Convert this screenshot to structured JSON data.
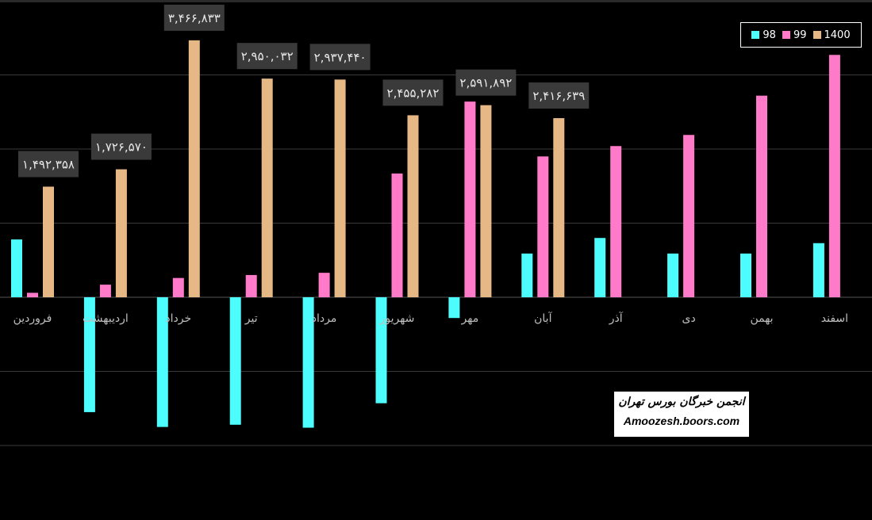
{
  "chart_data": {
    "type": "bar",
    "title": "",
    "xlabel": "",
    "ylabel": "",
    "ylim": [
      -2000000,
      4000000
    ],
    "grid": true,
    "legend_position": "top-right",
    "categories": [
      "فروردین",
      "اردیبهشت",
      "خرداد",
      "تیر",
      "مرداد",
      "شهریور",
      "مهر",
      "آبان",
      "آذر",
      "دی",
      "بهمن",
      "اسفند"
    ],
    "series": [
      {
        "name": "98",
        "color": "#4dfcfc",
        "values": [
          780000,
          -1550000,
          -1750000,
          -1720000,
          -1760000,
          -1430000,
          -280000,
          590000,
          800000,
          590000,
          590000,
          730000
        ]
      },
      {
        "name": "99",
        "color": "#ff7ac8",
        "values": [
          60000,
          170000,
          260000,
          300000,
          330000,
          1670000,
          2640000,
          1900000,
          2040000,
          2190000,
          2720000,
          3270000
        ]
      },
      {
        "name": "1400",
        "color": "#e6b886",
        "values": [
          1492358,
          1726570,
          3466833,
          2950032,
          2937440,
          2455282,
          2591892,
          2416639,
          null,
          null,
          null,
          null
        ]
      }
    ],
    "data_labels": {
      "series": "1400",
      "labels": [
        "۱,۴۹۲,۳۵۸",
        "۱,۷۲۶,۵۷۰",
        "۳,۴۶۶,۸۳۳",
        "۲,۹۵۰,۰۳۲",
        "۲,۹۳۷,۴۴۰",
        "۲,۴۵۵,۲۸۲",
        "۲,۵۹۱,۸۹۲",
        "۲,۴۱۶,۶۳۹"
      ]
    }
  },
  "watermark": {
    "line1": "انجمن خبرگان بورس تهران",
    "line2": "Amoozesh.boors.com"
  }
}
